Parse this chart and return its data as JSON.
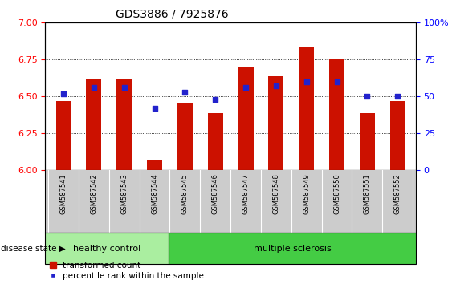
{
  "title": "GDS3886 / 7925876",
  "samples": [
    "GSM587541",
    "GSM587542",
    "GSM587543",
    "GSM587544",
    "GSM587545",
    "GSM587546",
    "GSM587547",
    "GSM587548",
    "GSM587549",
    "GSM587550",
    "GSM587551",
    "GSM587552"
  ],
  "red_values": [
    6.47,
    6.62,
    6.62,
    6.07,
    6.46,
    6.39,
    6.7,
    6.64,
    6.84,
    6.75,
    6.39,
    6.47
  ],
  "blue_percentiles": [
    52,
    56,
    56,
    42,
    53,
    48,
    56,
    57,
    60,
    60,
    50,
    50
  ],
  "ylim_left": [
    6.0,
    7.0
  ],
  "ylim_right": [
    0,
    100
  ],
  "yticks_left": [
    6.0,
    6.25,
    6.5,
    6.75,
    7.0
  ],
  "yticks_right": [
    0,
    25,
    50,
    75,
    100
  ],
  "bar_color": "#cc1100",
  "bar_base": 6.0,
  "blue_color": "#2222cc",
  "healthy_count": 4,
  "healthy_label": "healthy control",
  "ms_label": "multiple sclerosis",
  "disease_label": "disease state",
  "legend_red": "transformed count",
  "legend_blue": "percentile rank within the sample",
  "healthy_bg": "#aaeea0",
  "ms_bg": "#44cc44",
  "xlabel_bg": "#cccccc",
  "title_fontsize": 10
}
